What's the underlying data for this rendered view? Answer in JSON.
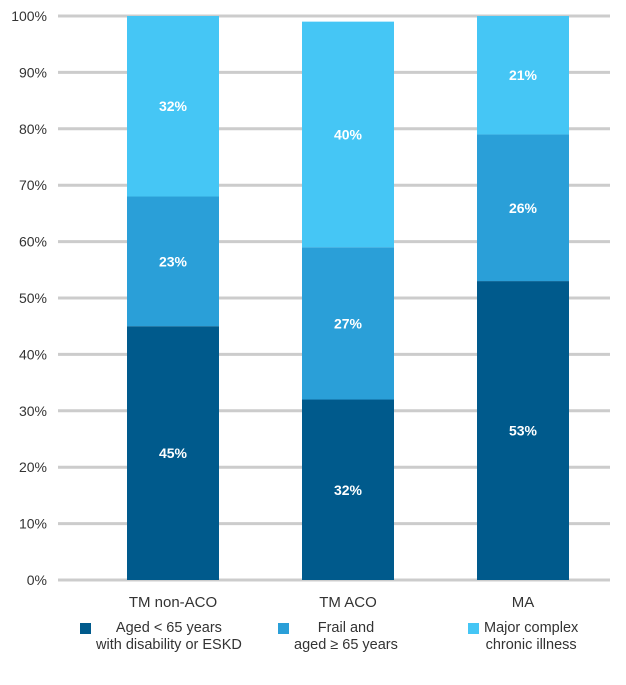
{
  "chart_data": {
    "type": "bar",
    "stacked": true,
    "categories": [
      "TM non-ACO",
      "TM ACO",
      "MA"
    ],
    "series": [
      {
        "name": "Aged < 65 years with disability or ESKD",
        "values": [
          45,
          32,
          53
        ],
        "labels": [
          "45%",
          "32%",
          "53%"
        ],
        "color": "#005a8c"
      },
      {
        "name": "Frail and aged ≥ 65 years",
        "values": [
          23,
          27,
          26
        ],
        "labels": [
          "23%",
          "27%",
          "26%"
        ],
        "color": "#2a9fd8"
      },
      {
        "name": "Major complex chronic illness",
        "values": [
          32,
          40,
          21
        ],
        "labels": [
          "32%",
          "40%",
          "21%"
        ],
        "color": "#45c6f5"
      }
    ],
    "ylim": [
      0,
      100
    ],
    "yticks": [
      "0%",
      "10%",
      "20%",
      "30%",
      "40%",
      "50%",
      "60%",
      "70%",
      "80%",
      "90%",
      "100%"
    ],
    "grid": true,
    "legend_position": "bottom",
    "gridline_color": "#cccccc",
    "title": "",
    "xlabel": "",
    "ylabel": ""
  },
  "legend": [
    {
      "lines": [
        "Aged < 65 years",
        "with disability or ESKD"
      ],
      "color": "#005a8c"
    },
    {
      "lines": [
        "Frail and",
        "aged ≥ 65 years"
      ],
      "color": "#2a9fd8"
    },
    {
      "lines": [
        "Major complex",
        "chronic illness"
      ],
      "color": "#45c6f5"
    }
  ]
}
